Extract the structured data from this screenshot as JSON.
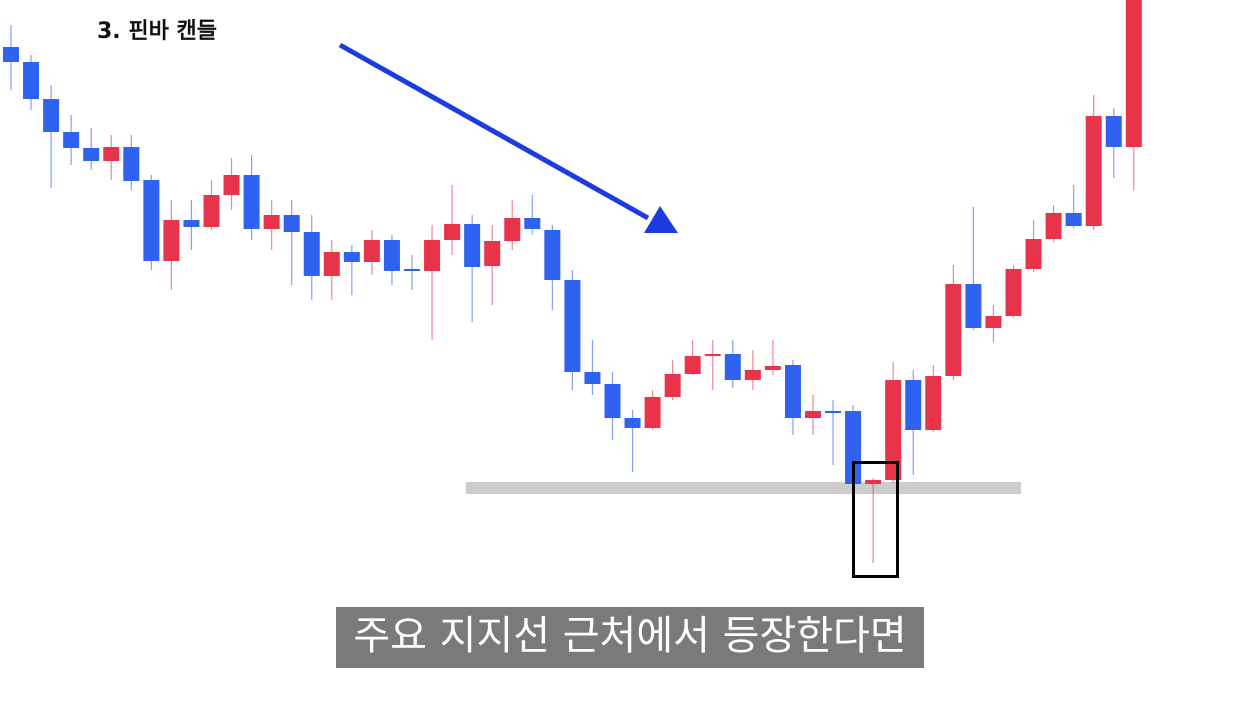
{
  "chart_data": {
    "type": "candlestick",
    "title": "3. 핀바 캔들",
    "caption": "주요 지지선 근처에서 등장한다면",
    "up_color": "#e8344a",
    "down_color": "#2f62f0",
    "ylim": [
      0,
      704
    ],
    "open": [
      657,
      642,
      605,
      572,
      556,
      543,
      557,
      524,
      443,
      484,
      477,
      509,
      529,
      475,
      489,
      472,
      428,
      452,
      442,
      464,
      435,
      433,
      464,
      480,
      438,
      463,
      486,
      474,
      424,
      332,
      320,
      286,
      276,
      307,
      330,
      348,
      350,
      324,
      334,
      339,
      286,
      293,
      293,
      220,
      224,
      324,
      274,
      328,
      420,
      376,
      388,
      435,
      465,
      491,
      478,
      588,
      557
    ],
    "high": [
      679,
      649,
      619,
      589,
      576,
      569,
      569,
      529,
      504,
      504,
      524,
      546,
      549,
      504,
      504,
      489,
      464,
      459,
      474,
      469,
      449,
      479,
      519,
      489,
      479,
      504,
      509,
      479,
      434,
      364,
      332,
      294,
      314,
      344,
      364,
      364,
      364,
      354,
      364,
      344,
      309,
      304,
      299,
      226,
      342,
      334,
      339,
      439,
      497,
      399,
      439,
      484,
      499,
      519,
      609,
      596,
      704
    ],
    "low": [
      614,
      594,
      516,
      539,
      534,
      524,
      514,
      434,
      414,
      454,
      474,
      494,
      464,
      454,
      419,
      404,
      404,
      409,
      429,
      419,
      414,
      364,
      449,
      382,
      399,
      454,
      469,
      394,
      314,
      309,
      264,
      232,
      274,
      304,
      329,
      314,
      316,
      314,
      329,
      269,
      269,
      239,
      219,
      141,
      221,
      229,
      272,
      324,
      374,
      362,
      386,
      432,
      462,
      476,
      474,
      526,
      514
    ],
    "close": [
      642,
      605,
      572,
      556,
      543,
      557,
      523,
      443,
      484,
      477,
      509,
      529,
      475,
      489,
      472,
      428,
      452,
      442,
      464,
      433,
      433,
      464,
      480,
      437,
      463,
      486,
      475,
      424,
      332,
      320,
      286,
      276,
      307,
      330,
      348,
      350,
      324,
      334,
      338,
      286,
      293,
      292,
      220,
      224,
      324,
      274,
      328,
      420,
      376,
      388,
      435,
      465,
      491,
      478,
      588,
      557,
      704
    ]
  }
}
